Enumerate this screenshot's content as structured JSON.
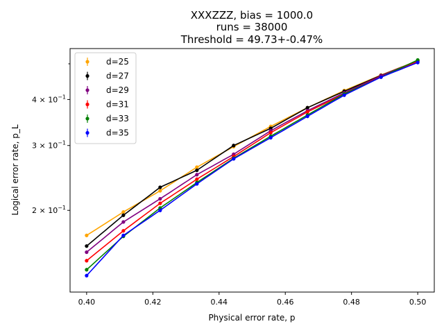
{
  "chart_data": {
    "type": "scatter",
    "title_lines": [
      "XXXZZZ, bias = 1000.0",
      "runs = 38000",
      "Threshold = 49.73+-0.47%"
    ],
    "xlabel": "Physical error rate, p",
    "ylabel": "Logical error rate, p_L",
    "xlim": [
      0.395,
      0.505
    ],
    "ylim": [
      0.12,
      0.55
    ],
    "yscale": "log",
    "grid": false,
    "legend_position": "upper-left",
    "x_ticks": [
      0.4,
      0.42,
      0.44,
      0.46,
      0.48,
      0.5
    ],
    "x_tick_labels": [
      "0.40",
      "0.42",
      "0.44",
      "0.46",
      "0.48",
      "0.50"
    ],
    "y_major_ticks": [
      {
        "value": 0.2,
        "base": "2 × 10",
        "exp": "−1"
      },
      {
        "value": 0.3,
        "base": "3 × 10",
        "exp": "−1"
      },
      {
        "value": 0.4,
        "base": "4 × 10",
        "exp": "−1"
      }
    ],
    "y_minor_ticks": [
      0.5
    ],
    "x": [
      0.4,
      0.4111,
      0.4222,
      0.4333,
      0.4444,
      0.4556,
      0.4667,
      0.4778,
      0.4889,
      0.5
    ],
    "series": [
      {
        "name": "d=25",
        "color": "#ffa500",
        "values": [
          0.171,
          0.198,
          0.226,
          0.262,
          0.298,
          0.338,
          0.38,
          0.423,
          0.466,
          0.51
        ]
      },
      {
        "name": "d=27",
        "color": "#000000",
        "values": [
          0.16,
          0.194,
          0.231,
          0.257,
          0.3,
          0.334,
          0.38,
          0.421,
          0.465,
          0.509
        ]
      },
      {
        "name": "d=29",
        "color": "#800080",
        "values": [
          0.154,
          0.186,
          0.215,
          0.25,
          0.284,
          0.329,
          0.373,
          0.417,
          0.464,
          0.51
        ]
      },
      {
        "name": "d=31",
        "color": "#ff0000",
        "values": [
          0.146,
          0.176,
          0.209,
          0.243,
          0.28,
          0.325,
          0.37,
          0.414,
          0.461,
          0.507
        ]
      },
      {
        "name": "d=33",
        "color": "#008000",
        "values": [
          0.138,
          0.17,
          0.203,
          0.238,
          0.277,
          0.318,
          0.363,
          0.414,
          0.46,
          0.512
        ]
      },
      {
        "name": "d=35",
        "color": "#0000ff",
        "values": [
          0.133,
          0.171,
          0.2,
          0.236,
          0.276,
          0.315,
          0.36,
          0.411,
          0.46,
          0.504
        ]
      }
    ]
  }
}
